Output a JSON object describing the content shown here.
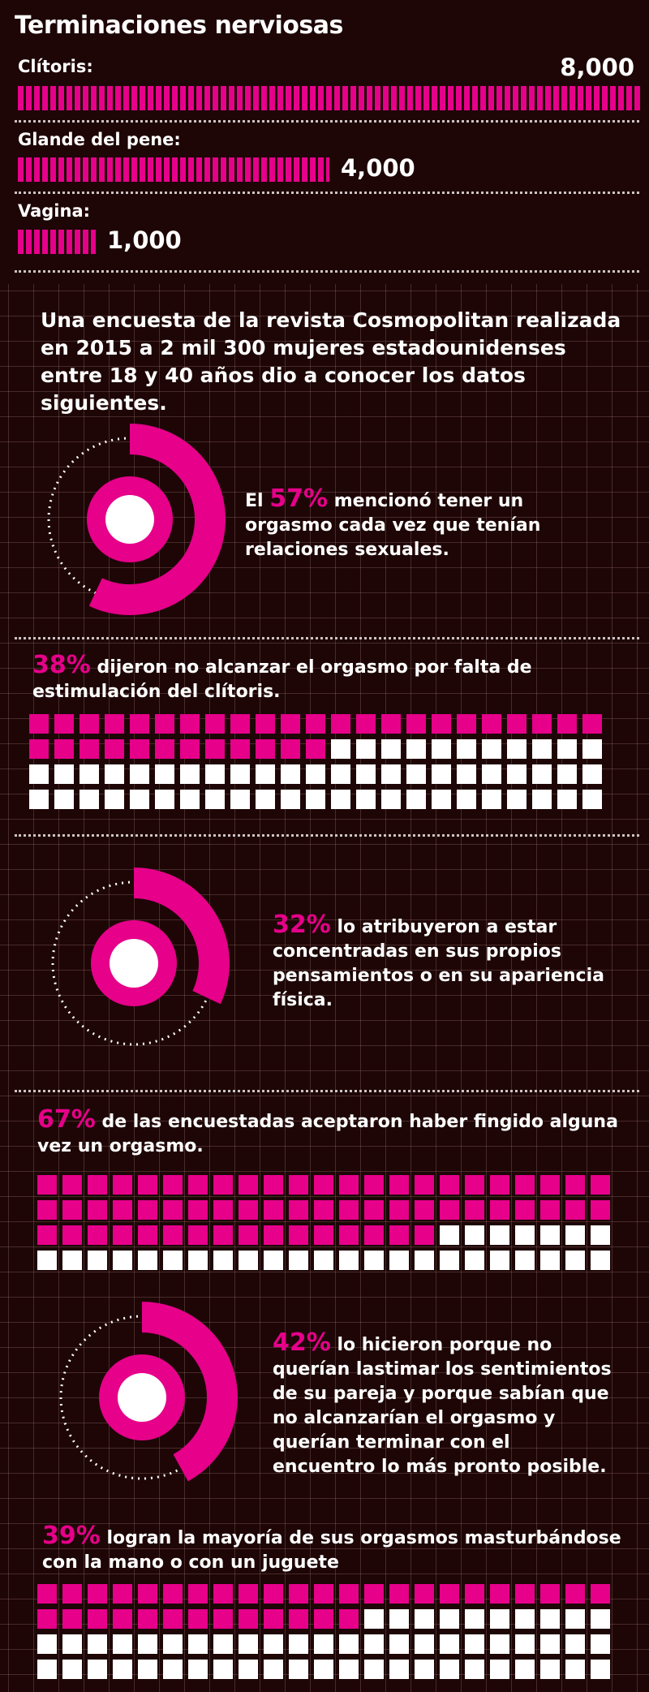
{
  "chart_data": [
    {
      "type": "bar",
      "title": "Terminaciones nerviosas",
      "categories": [
        "Clítoris:",
        "Glande del pene:",
        "Vagina:"
      ],
      "values": [
        8000,
        4000,
        1000
      ],
      "value_labels": [
        "8,000",
        "4,000",
        "1,000"
      ]
    }
  ],
  "intro": "Una encuesta de la revista Cosmopolitan realizada en 2015 a 2 mil 300 mujeres estadounidenses entre 18 y 40 años dio a conocer los datos siguientes.",
  "stats": [
    {
      "kind": "donut",
      "value": 57,
      "prefix": "El ",
      "pct": "57%",
      "text": " mencionó tener un orgasmo cada vez que tenían relaciones sexuales."
    },
    {
      "kind": "waffle",
      "value": 38,
      "prefix": "",
      "pct": "38%",
      "text": " dijeron no alcanzar el orgasmo por falta de estimulación del clítoris."
    },
    {
      "kind": "donut",
      "value": 32,
      "prefix": "",
      "pct": "32%",
      "text": " lo atribuyeron a estar concentradas en sus propios pensamientos o en su apariencia física."
    },
    {
      "kind": "waffle",
      "value": 67,
      "prefix": "",
      "pct": "67%",
      "text": " de las encuestadas aceptaron haber fingido alguna vez un orgasmo."
    },
    {
      "kind": "donut",
      "value": 42,
      "prefix": "",
      "pct": "42%",
      "text": " lo hicieron porque no querían lastimar los sentimientos de su pareja y porque sabían que no alcanzarían el orgasmo y querían terminar con el encuentro lo más pronto posible."
    },
    {
      "kind": "waffle",
      "value": 39,
      "prefix": "",
      "pct": "39%",
      "text": " logran la mayoría de sus orgasmos masturbándose con la mano o con un juguete"
    }
  ],
  "colors": {
    "accent": "#e6008a",
    "background": "#1e0606",
    "cell_off": "#ffffff"
  }
}
